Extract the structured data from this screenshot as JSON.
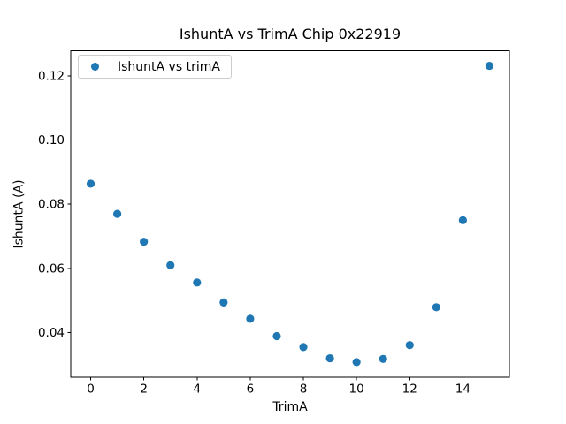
{
  "chart_data": {
    "type": "scatter",
    "title": "IshuntA vs TrimA Chip 0x22919",
    "xlabel": "TrimA",
    "ylabel": "IshuntA (A)",
    "legend": [
      "IshuntA vs trimA"
    ],
    "legend_position": "upper left",
    "marker_color": "#1f77b4",
    "grid": false,
    "x": [
      0,
      1,
      2,
      3,
      4,
      5,
      6,
      7,
      8,
      9,
      10,
      11,
      12,
      13,
      14,
      15
    ],
    "y": [
      0.0864,
      0.077,
      0.0683,
      0.061,
      0.0556,
      0.0494,
      0.0443,
      0.0389,
      0.0355,
      0.032,
      0.0308,
      0.0318,
      0.0361,
      0.0479,
      0.075,
      0.1231
    ],
    "xlim": [
      -0.75,
      15.75
    ],
    "ylim": [
      0.0261,
      0.1278
    ],
    "xticks": [
      0,
      2,
      4,
      6,
      8,
      10,
      12,
      14
    ],
    "xtick_labels": [
      "0",
      "2",
      "4",
      "6",
      "8",
      "10",
      "12",
      "14"
    ],
    "yticks": [
      0.04,
      0.06,
      0.08,
      0.1,
      0.12
    ],
    "ytick_labels": [
      "0.04",
      "0.06",
      "0.08",
      "0.10",
      "0.12"
    ]
  }
}
